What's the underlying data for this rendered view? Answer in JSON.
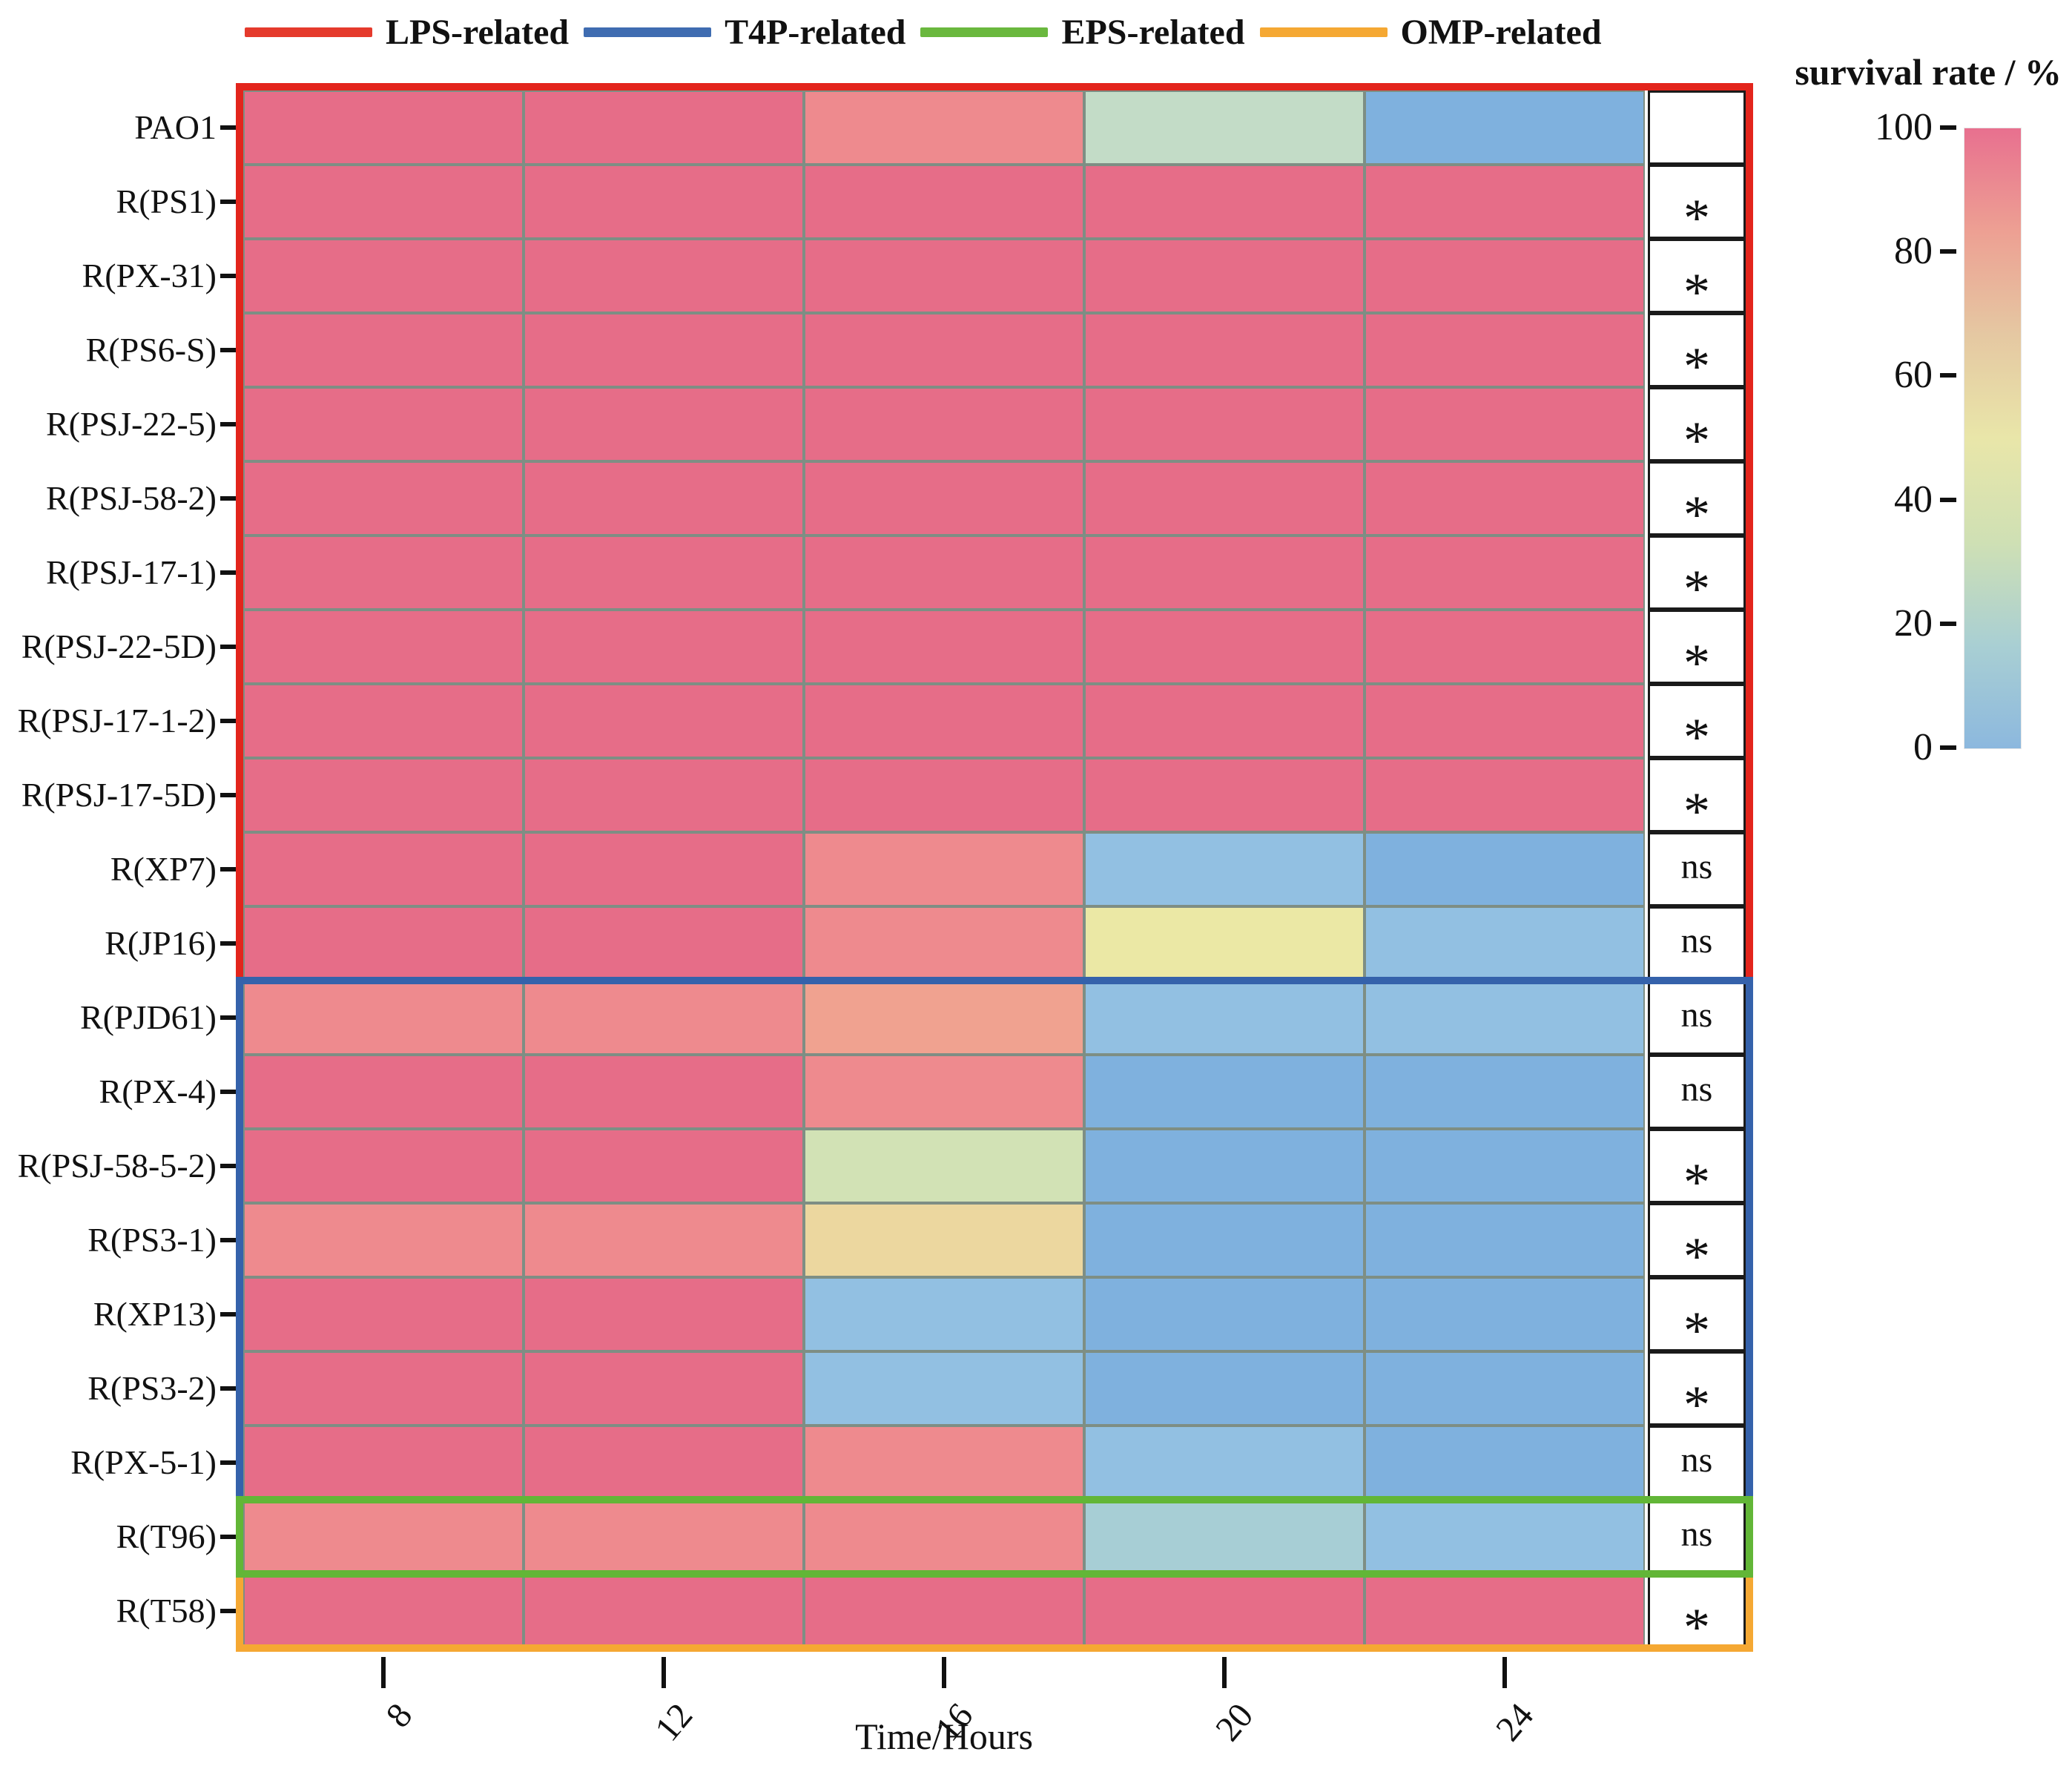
{
  "figure": {
    "xlabel": "Time/Hours",
    "colorbar_title": "survival rate / %"
  },
  "legend": {
    "items": [
      {
        "label": "LPS-related",
        "color": "#e53a2c"
      },
      {
        "label": "T4P-related",
        "color": "#3f6cb1"
      },
      {
        "label": "EPS-related",
        "color": "#6ab83e"
      },
      {
        "label": "OMP-related",
        "color": "#f5a833"
      }
    ]
  },
  "chart_data": {
    "type": "heatmap",
    "xlabel": "Time/Hours",
    "x_ticks": [
      "8",
      "12",
      "16",
      "20",
      "24"
    ],
    "colorbar": {
      "title": "survival rate / %",
      "ticks": [
        "100",
        "80",
        "60",
        "40",
        "20",
        "0"
      ],
      "range": [
        0,
        100
      ],
      "gradient": [
        "#e8708f",
        "#eda093",
        "#e5c8a2",
        "#e9e6a9",
        "#cfe0b4",
        "#a9cfd3",
        "#8cb8de"
      ]
    },
    "groups": [
      {
        "name": "LPS-related",
        "color": "#e3251c",
        "row_start": 0,
        "row_end": 11
      },
      {
        "name": "T4P-related",
        "color": "#3562ab",
        "row_start": 12,
        "row_end": 18
      },
      {
        "name": "EPS-related",
        "color": "#62b637",
        "row_start": 19,
        "row_end": 19
      },
      {
        "name": "OMP-related",
        "color": "#f5a833",
        "row_start": 20,
        "row_end": 20
      }
    ],
    "rows": [
      {
        "label": "PAO1",
        "sig": "",
        "values": [
          100,
          100,
          88,
          28,
          2
        ],
        "colors": [
          "#e66d88",
          "#e66d88",
          "#ee8a8e",
          "#c3dcc7",
          "#7fb1de"
        ]
      },
      {
        "label": "R(PS1)",
        "sig": "*",
        "values": [
          100,
          100,
          100,
          100,
          100
        ],
        "colors": [
          "#e66d88",
          "#e66d88",
          "#e66d88",
          "#e66d88",
          "#e66d88"
        ]
      },
      {
        "label": "R(PX-31)",
        "sig": "*",
        "values": [
          100,
          100,
          100,
          100,
          100
        ],
        "colors": [
          "#e66d88",
          "#e66d88",
          "#e66d88",
          "#e66d88",
          "#e66d88"
        ]
      },
      {
        "label": "R(PS6-S)",
        "sig": "*",
        "values": [
          100,
          100,
          100,
          100,
          100
        ],
        "colors": [
          "#e66d88",
          "#e66d88",
          "#e66d88",
          "#e66d88",
          "#e66d88"
        ]
      },
      {
        "label": "R(PSJ-22-5)",
        "sig": "*",
        "values": [
          100,
          100,
          100,
          100,
          100
        ],
        "colors": [
          "#e66d88",
          "#e66d88",
          "#e66d88",
          "#e66d88",
          "#e66d88"
        ]
      },
      {
        "label": "R(PSJ-58-2)",
        "sig": "*",
        "values": [
          100,
          100,
          100,
          100,
          100
        ],
        "colors": [
          "#e66d88",
          "#e66d88",
          "#e66d88",
          "#e66d88",
          "#e66d88"
        ]
      },
      {
        "label": "R(PSJ-17-1)",
        "sig": "*",
        "values": [
          100,
          100,
          100,
          100,
          100
        ],
        "colors": [
          "#e66d88",
          "#e66d88",
          "#e66d88",
          "#e66d88",
          "#e66d88"
        ]
      },
      {
        "label": "R(PSJ-22-5D)",
        "sig": "*",
        "values": [
          100,
          100,
          100,
          100,
          100
        ],
        "colors": [
          "#e66d88",
          "#e66d88",
          "#e66d88",
          "#e66d88",
          "#e66d88"
        ]
      },
      {
        "label": "R(PSJ-17-1-2)",
        "sig": "*",
        "values": [
          100,
          100,
          100,
          100,
          100
        ],
        "colors": [
          "#e66d88",
          "#e66d88",
          "#e66d88",
          "#e66d88",
          "#e66d88"
        ]
      },
      {
        "label": "R(PSJ-17-5D)",
        "sig": "*",
        "values": [
          100,
          100,
          100,
          100,
          100
        ],
        "colors": [
          "#e66d88",
          "#e66d88",
          "#e66d88",
          "#e66d88",
          "#e66d88"
        ]
      },
      {
        "label": "R(XP7)",
        "sig": "ns",
        "values": [
          100,
          100,
          88,
          8,
          2
        ],
        "colors": [
          "#e66d88",
          "#e66d88",
          "#ee8a8e",
          "#92c0e2",
          "#7fb1de"
        ]
      },
      {
        "label": "R(JP16)",
        "sig": "ns",
        "values": [
          100,
          100,
          88,
          45,
          8
        ],
        "colors": [
          "#e66d88",
          "#e66d88",
          "#ee8a8e",
          "#ebe8a5",
          "#92c0e2"
        ]
      },
      {
        "label": "R(PJD61)",
        "sig": "ns",
        "values": [
          88,
          88,
          78,
          8,
          8
        ],
        "colors": [
          "#ee8a8e",
          "#ee8a8e",
          "#f0a290",
          "#92c0e2",
          "#92c0e2"
        ]
      },
      {
        "label": "R(PX-4)",
        "sig": "ns",
        "values": [
          100,
          100,
          88,
          2,
          2
        ],
        "colors": [
          "#e66d88",
          "#e66d88",
          "#ee8a8e",
          "#7fb1de",
          "#7fb1de"
        ]
      },
      {
        "label": "R(PSJ-58-5-2)",
        "sig": "*",
        "values": [
          100,
          100,
          38,
          2,
          2
        ],
        "colors": [
          "#e66d88",
          "#e66d88",
          "#d2e2b5",
          "#7fb1de",
          "#7fb1de"
        ]
      },
      {
        "label": "R(PS3-1)",
        "sig": "*",
        "values": [
          88,
          88,
          58,
          2,
          2
        ],
        "colors": [
          "#ee8a8e",
          "#ee8a8e",
          "#ecd79f",
          "#7fb1de",
          "#7fb1de"
        ]
      },
      {
        "label": "R(XP13)",
        "sig": "*",
        "values": [
          100,
          100,
          8,
          2,
          2
        ],
        "colors": [
          "#e66d88",
          "#e66d88",
          "#92c0e2",
          "#7fb1de",
          "#7fb1de"
        ]
      },
      {
        "label": "R(PS3-2)",
        "sig": "*",
        "values": [
          100,
          100,
          8,
          2,
          2
        ],
        "colors": [
          "#e66d88",
          "#e66d88",
          "#92c0e2",
          "#7fb1de",
          "#7fb1de"
        ]
      },
      {
        "label": "R(PX-5-1)",
        "sig": "ns",
        "values": [
          100,
          100,
          88,
          8,
          2
        ],
        "colors": [
          "#e66d88",
          "#e66d88",
          "#ee8a8e",
          "#92c0e2",
          "#7fb1de"
        ]
      },
      {
        "label": "R(T96)",
        "sig": "ns",
        "values": [
          88,
          88,
          88,
          20,
          8
        ],
        "colors": [
          "#ee8a8e",
          "#ee8a8e",
          "#ee8a8e",
          "#a7ced5",
          "#92c0e2"
        ]
      },
      {
        "label": "R(T58)",
        "sig": "*",
        "values": [
          100,
          100,
          100,
          100,
          100
        ],
        "colors": [
          "#e66d88",
          "#e66d88",
          "#e66d88",
          "#e66d88",
          "#e66d88"
        ]
      }
    ]
  }
}
